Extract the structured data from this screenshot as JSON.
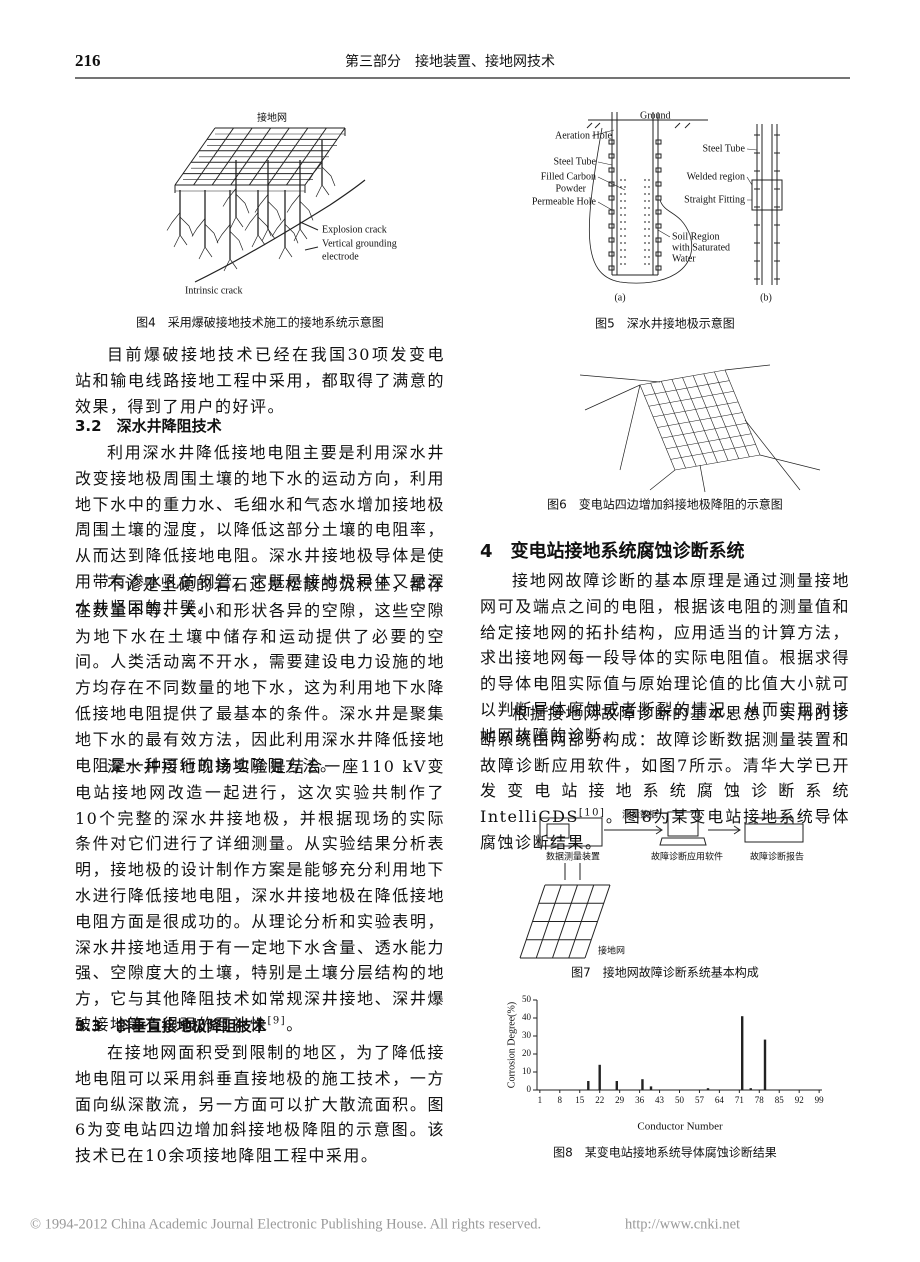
{
  "header": {
    "page_number": "216",
    "section": "第三部分　接地装置、接地网技术"
  },
  "left_column": {
    "figure4": {
      "labels": [
        "接地网",
        "Explosion crack",
        "Vertical grounding",
        "electrode",
        "Intrinsic crack"
      ],
      "caption": "图4　采用爆破接地技术施工的接地系统示意图"
    },
    "paragraphs": [
      {
        "kind": "text",
        "text": "目前爆破接地技术已经在我国30项发变电站和输电线路接地工程中采用，都取得了满意的效果，得到了用户的好评。"
      },
      {
        "kind": "heading",
        "text": "3.2　深水井降阻技术"
      },
      {
        "kind": "text",
        "text": "利用深水井降低接地电阻主要是利用深水井改变接地极周围土壤的地下水的运动方向，利用地下水中的重力水、毛细水和气态水增加接地极周围土壤的湿度，以降低这部分土壤的电阻率，从而达到降低接地电阻。深水井接地极导体是使用带有渗水孔的钢管，它既是接地极导体又是深水井坚固的井壁。"
      },
      {
        "kind": "text",
        "text": "不论是坚硬的岩石还是松散的沉积土，都存在数量不等、大小和形状各异的空隙，这些空隙为地下水在土壤中储存和运动提供了必要的空间。人类活动离不开水，需要建设电力设施的地方均存在不同数量的地下水，这为利用地下水降低接地电阻提供了最基本的条件。深水井是聚集地下水的最有效方法，因此利用深水井降低接地电阻是一种可行的接地降阻方法。"
      },
      {
        "kind": "text",
        "text": "深水井接地现场实验是结合一座110 kV变电站接地网改造一起进行，这次实验共制作了10个完整的深水井接地极，并根据现场的实际条件对它们进行了详细测量。从实验结果分析表明，接地极的设计制作方案是能够充分利用地下水进行降低接地电阻，深水井接地极在降低接地电阻方面是很成功的。从理论分析和实验表明，深水井接地适用于有一定地下水含量、透水能力强、空隙度大的土壤，特别是土壤分层结构的地方，它与其他降阻技术如常规深井接地、深井爆破接地等有很强的互补性",
        "ref": "[9]",
        "tail": "。"
      },
      {
        "kind": "heading",
        "text": "3.3　斜垂直接地极降阻技术"
      },
      {
        "kind": "text",
        "text": "在接地网面积受到限制的地区，为了降低接地电阻可以采用斜垂直接地极的施工技术，一方面向纵深散流，另一方面可以扩大散流面积。图6为变电站四边增加斜接地极降阻的示意图。该技术已在10余项接地降阻工程中采用。"
      }
    ]
  },
  "right_column": {
    "figure5": {
      "labels_a": [
        "Ground",
        "Aeration Hole",
        "Steel Tube",
        "Filled Carbon",
        "Powder",
        "Permeable Hole",
        "Soil Region",
        "with Saturated",
        "Water",
        "(a)"
      ],
      "labels_b": [
        "Steel Tube",
        "Welded region",
        "Straight Fitting",
        "(b)"
      ],
      "caption": "图5　深水井接地极示意图"
    },
    "figure6": {
      "caption": "图6　变电站四边增加斜接地极降阻的示意图"
    },
    "paragraphs": [
      {
        "kind": "heading",
        "text": "4　变电站接地系统腐蚀诊断系统"
      },
      {
        "kind": "text",
        "text": "接地网故障诊断的基本原理是通过测量接地网可及端点之间的电阻，根据该电阻的测量值和给定接地网的拓扑结构，应用适当的计算方法，求出接地网每一段导体的实际电阻值。根据求得的导体电阻实际值与原始理论值的比值大小就可以判断导体腐蚀或者断裂的情况，从而实现对接地网故障的诊断。"
      },
      {
        "kind": "text",
        "text": "根据接地网故障诊断的基本思想，实用的诊断系统由两部分构成：故障诊断数据测量装置和故障诊断应用软件，如图7所示。清华大学已开发变电站接地系统腐蚀诊断系统 IntelliCDS",
        "ref": "[10]",
        "tail": "。图8为某变电站接地系统导体腐蚀诊断结果。"
      }
    ],
    "figure7": {
      "labels": [
        "测量数据",
        "数据测量装置",
        "故障诊断应用软件",
        "故障诊断报告",
        "接地网"
      ],
      "caption": "图7　接地网故障诊断系统基本构成"
    },
    "figure8": {
      "chart_data": {
        "type": "bar",
        "ylabel": "Corrosion Degree(%)",
        "xlabel": "Conductor Number",
        "x": [
          18,
          22,
          28,
          37,
          40,
          60,
          72,
          75,
          80
        ],
        "values": [
          5,
          14,
          5,
          6,
          2,
          1,
          41,
          1,
          28
        ],
        "color": "#222222",
        "xlim": [
          0,
          100
        ],
        "xticks": [
          1,
          8,
          15,
          22,
          29,
          36,
          43,
          50,
          57,
          64,
          71,
          78,
          85,
          92,
          99
        ],
        "ylim": [
          0,
          50
        ],
        "yticks": [
          0,
          10,
          20,
          30,
          40,
          50
        ]
      },
      "caption": "图8　某变电站接地系统导体腐蚀诊断结果"
    }
  },
  "footer": {
    "copyright": "© 1994-2012 China Academic Journal Electronic Publishing House. All rights reserved.",
    "url": "http://www.cnki.net"
  }
}
